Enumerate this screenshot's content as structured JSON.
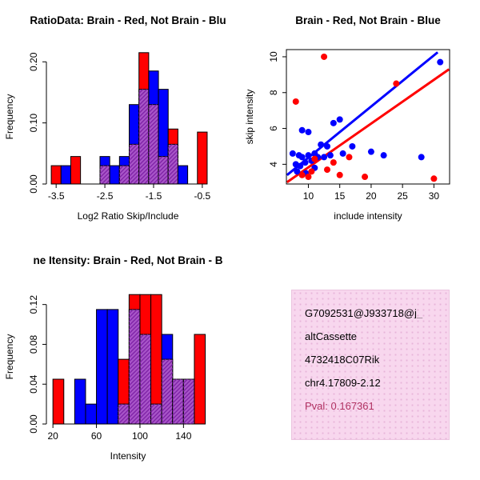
{
  "colors": {
    "red": "#FF0000",
    "blue": "#0000FF",
    "overlap_fill": "#A855C8",
    "overlap_line": "#7E22A6",
    "axis": "#000000",
    "info_bg": "#F8D7EE",
    "pval": "#B03060"
  },
  "info_box": {
    "lines": [
      "G7092531@J933718@j_",
      "altCassette",
      "4732418C07Rik",
      "chr4.17809-2.12"
    ],
    "pval": "Pval: 0.167361"
  },
  "chart_data": [
    {
      "type": "bar",
      "subtype": "overlaid-histogram",
      "title": "RatioData: Brain - Red, Not Brain - Blu",
      "xlabel": "Log2 Ratio Skip/Include",
      "ylabel": "Frequency",
      "box": false,
      "bin_start": -3.6,
      "bin_width": 0.2,
      "series": [
        {
          "name": "Brain",
          "color": "red",
          "values": [
            0.03,
            0,
            0.045,
            0,
            0,
            0.03,
            0,
            0.03,
            0.065,
            0.215,
            0.13,
            0.045,
            0.09,
            0,
            0,
            0.085
          ]
        },
        {
          "name": "Not Brain",
          "color": "blue",
          "values": [
            0,
            0.03,
            0,
            0,
            0,
            0.045,
            0.03,
            0.045,
            0.13,
            0.155,
            0.185,
            0.155,
            0.065,
            0.03,
            0,
            0
          ]
        }
      ],
      "xlim": [
        -3.7,
        -0.35
      ],
      "ylim": [
        0,
        0.22
      ],
      "xticks": {
        "values": [
          -3.5,
          -2.5,
          -1.5,
          -0.5
        ],
        "labels": [
          "-3.5",
          "-2.5",
          "-1.5",
          "-0.5"
        ]
      },
      "yticks": {
        "values": [
          0,
          0.1,
          0.2
        ],
        "labels": [
          "0.00",
          "0.10",
          "0.20"
        ]
      }
    },
    {
      "type": "scatter",
      "title": "Brain - Red, Not Brain - Blue",
      "xlabel": "include intensity",
      "ylabel": "skip intensity",
      "box": true,
      "series": [
        {
          "name": "Not Brain",
          "color": "blue",
          "points": [
            [
              7.5,
              4.6
            ],
            [
              8,
              4.0
            ],
            [
              8.2,
              3.6
            ],
            [
              8.5,
              4.5
            ],
            [
              8.7,
              3.9
            ],
            [
              9,
              5.9
            ],
            [
              9,
              4.4
            ],
            [
              9.5,
              4.1
            ],
            [
              9.6,
              3.5
            ],
            [
              10,
              5.8
            ],
            [
              10,
              4.5
            ],
            [
              10.5,
              4.2
            ],
            [
              11,
              4.6
            ],
            [
              11,
              3.8
            ],
            [
              11.5,
              4.4
            ],
            [
              12,
              5.1
            ],
            [
              12.5,
              4.4
            ],
            [
              13,
              5.0
            ],
            [
              13.5,
              4.5
            ],
            [
              14,
              6.3
            ],
            [
              15,
              6.5
            ],
            [
              15.5,
              4.6
            ],
            [
              17,
              5.0
            ],
            [
              20,
              4.7
            ],
            [
              22,
              4.5
            ],
            [
              28,
              4.4
            ],
            [
              31,
              9.7
            ]
          ]
        },
        {
          "name": "Brain",
          "color": "red",
          "points": [
            [
              8,
              7.5
            ],
            [
              9,
              3.4
            ],
            [
              10,
              3.3
            ],
            [
              10.5,
              3.6
            ],
            [
              11,
              4.3
            ],
            [
              12.5,
              10.0
            ],
            [
              13,
              3.7
            ],
            [
              14,
              4.1
            ],
            [
              15,
              3.4
            ],
            [
              16.5,
              4.4
            ],
            [
              19,
              3.3
            ],
            [
              24,
              8.5
            ],
            [
              30,
              3.2
            ]
          ]
        }
      ],
      "lines": [
        {
          "name": "not-brain-fit",
          "color": "blue",
          "x1": 6.6,
          "y1": 3.4,
          "x2": 30.6,
          "y2": 10.25
        },
        {
          "name": "brain-fit",
          "color": "red",
          "x1": 6.6,
          "y1": 3.0,
          "x2": 32.4,
          "y2": 9.3
        }
      ],
      "xlim": [
        6.5,
        32.5
      ],
      "ylim": [
        2.9,
        10.4
      ],
      "xticks": {
        "values": [
          10,
          15,
          20,
          25,
          30
        ],
        "labels": [
          "10",
          "15",
          "20",
          "25",
          "30"
        ]
      },
      "yticks": {
        "values": [
          4,
          6,
          8,
          10
        ],
        "labels": [
          "4",
          "6",
          "8",
          "10"
        ]
      }
    },
    {
      "type": "bar",
      "subtype": "overlaid-histogram",
      "title": "ne Itensity: Brain - Red, Not Brain - B",
      "xlabel": "Intensity",
      "ylabel": "Frequency",
      "box": false,
      "bin_start": 20,
      "bin_width": 10,
      "series": [
        {
          "name": "Brain",
          "color": "red",
          "values": [
            0.045,
            0,
            0,
            0,
            0,
            0,
            0.065,
            0.13,
            0.13,
            0.13,
            0.065,
            0.045,
            0.045,
            0.09
          ]
        },
        {
          "name": "Not Brain",
          "color": "blue",
          "values": [
            0,
            0,
            0.045,
            0.02,
            0.115,
            0.115,
            0.02,
            0.115,
            0.09,
            0.02,
            0.09,
            0.045,
            0.045,
            0
          ]
        }
      ],
      "xlim": [
        14,
        164
      ],
      "ylim": [
        0,
        0.135
      ],
      "xticks": {
        "values": [
          20,
          60,
          100,
          140
        ],
        "labels": [
          "20",
          "60",
          "100",
          "140"
        ]
      },
      "yticks": {
        "values": [
          0,
          0.04,
          0.08,
          0.12
        ],
        "labels": [
          "0.00",
          "0.04",
          "0.08",
          "0.12"
        ]
      }
    }
  ]
}
